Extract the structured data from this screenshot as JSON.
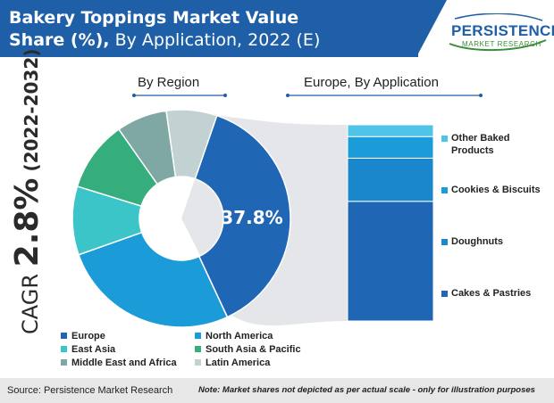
{
  "title": {
    "bold": "Bakery Toppings Market Value",
    "bold2": "Share (%),",
    "normal": " By Application, 2022 (E)"
  },
  "logo": {
    "main": "PERSISTENCE",
    "sub": "MARKET RESEARCH"
  },
  "cagr": {
    "label": "CAGR ",
    "value": "2.8%",
    "years": " (2022-2032)"
  },
  "headings": {
    "left": "By Region",
    "right": "Europe, By Application"
  },
  "colors": {
    "band": "#1e5fa8",
    "europe": "#1f66b4",
    "north_america": "#1b9bd8",
    "east_asia": "#3cc5c9",
    "south_asia_pacific": "#35ad7c",
    "middle_east_africa": "#7fa7a3",
    "latin_america": "#c2d2d2"
  },
  "chart_data": [
    {
      "type": "pie",
      "title": "By Region",
      "center_label": "37.8%",
      "slices": [
        {
          "name": "Europe",
          "value": 37.8
        },
        {
          "name": "North America",
          "value": 26.5
        },
        {
          "name": "East Asia",
          "value": 10.2
        },
        {
          "name": "South Asia & Pacific",
          "value": 10.5
        },
        {
          "name": "Middle East and Africa",
          "value": 7.5
        },
        {
          "name": "Latin America",
          "value": 7.5
        }
      ]
    },
    {
      "type": "bar",
      "title": "Europe, By Application",
      "stacked": true,
      "categories": [
        "Cakes & Pastries",
        "Doughnuts",
        "Cookies & Biscuits",
        "Other Baked Products"
      ],
      "values": [
        61,
        22,
        11,
        6
      ]
    }
  ],
  "legend": [
    {
      "name": "Europe",
      "color": "#1f66b4"
    },
    {
      "name": "North America",
      "color": "#1b9bd8"
    },
    {
      "name": "East Asia",
      "color": "#3cc5c9"
    },
    {
      "name": "South Asia & Pacific",
      "color": "#35ad7c"
    },
    {
      "name": "Middle East and Africa",
      "color": "#7fa7a3"
    },
    {
      "name": "Latin America",
      "color": "#c2d2d2"
    }
  ],
  "bar_legend": [
    {
      "label": "Other Baked Products",
      "color": "#4fc3e8"
    },
    {
      "label": "Cookies & Biscuits",
      "color": "#1b9bd8"
    },
    {
      "label": "Doughnuts",
      "color": "#1a86cc"
    },
    {
      "label": "Cakes & Pastries",
      "color": "#1f66b4"
    }
  ],
  "footer": {
    "source": "Source: Persistence Market Research",
    "note": "Note: Market shares not depicted as per actual scale - only for illustration purposes"
  }
}
